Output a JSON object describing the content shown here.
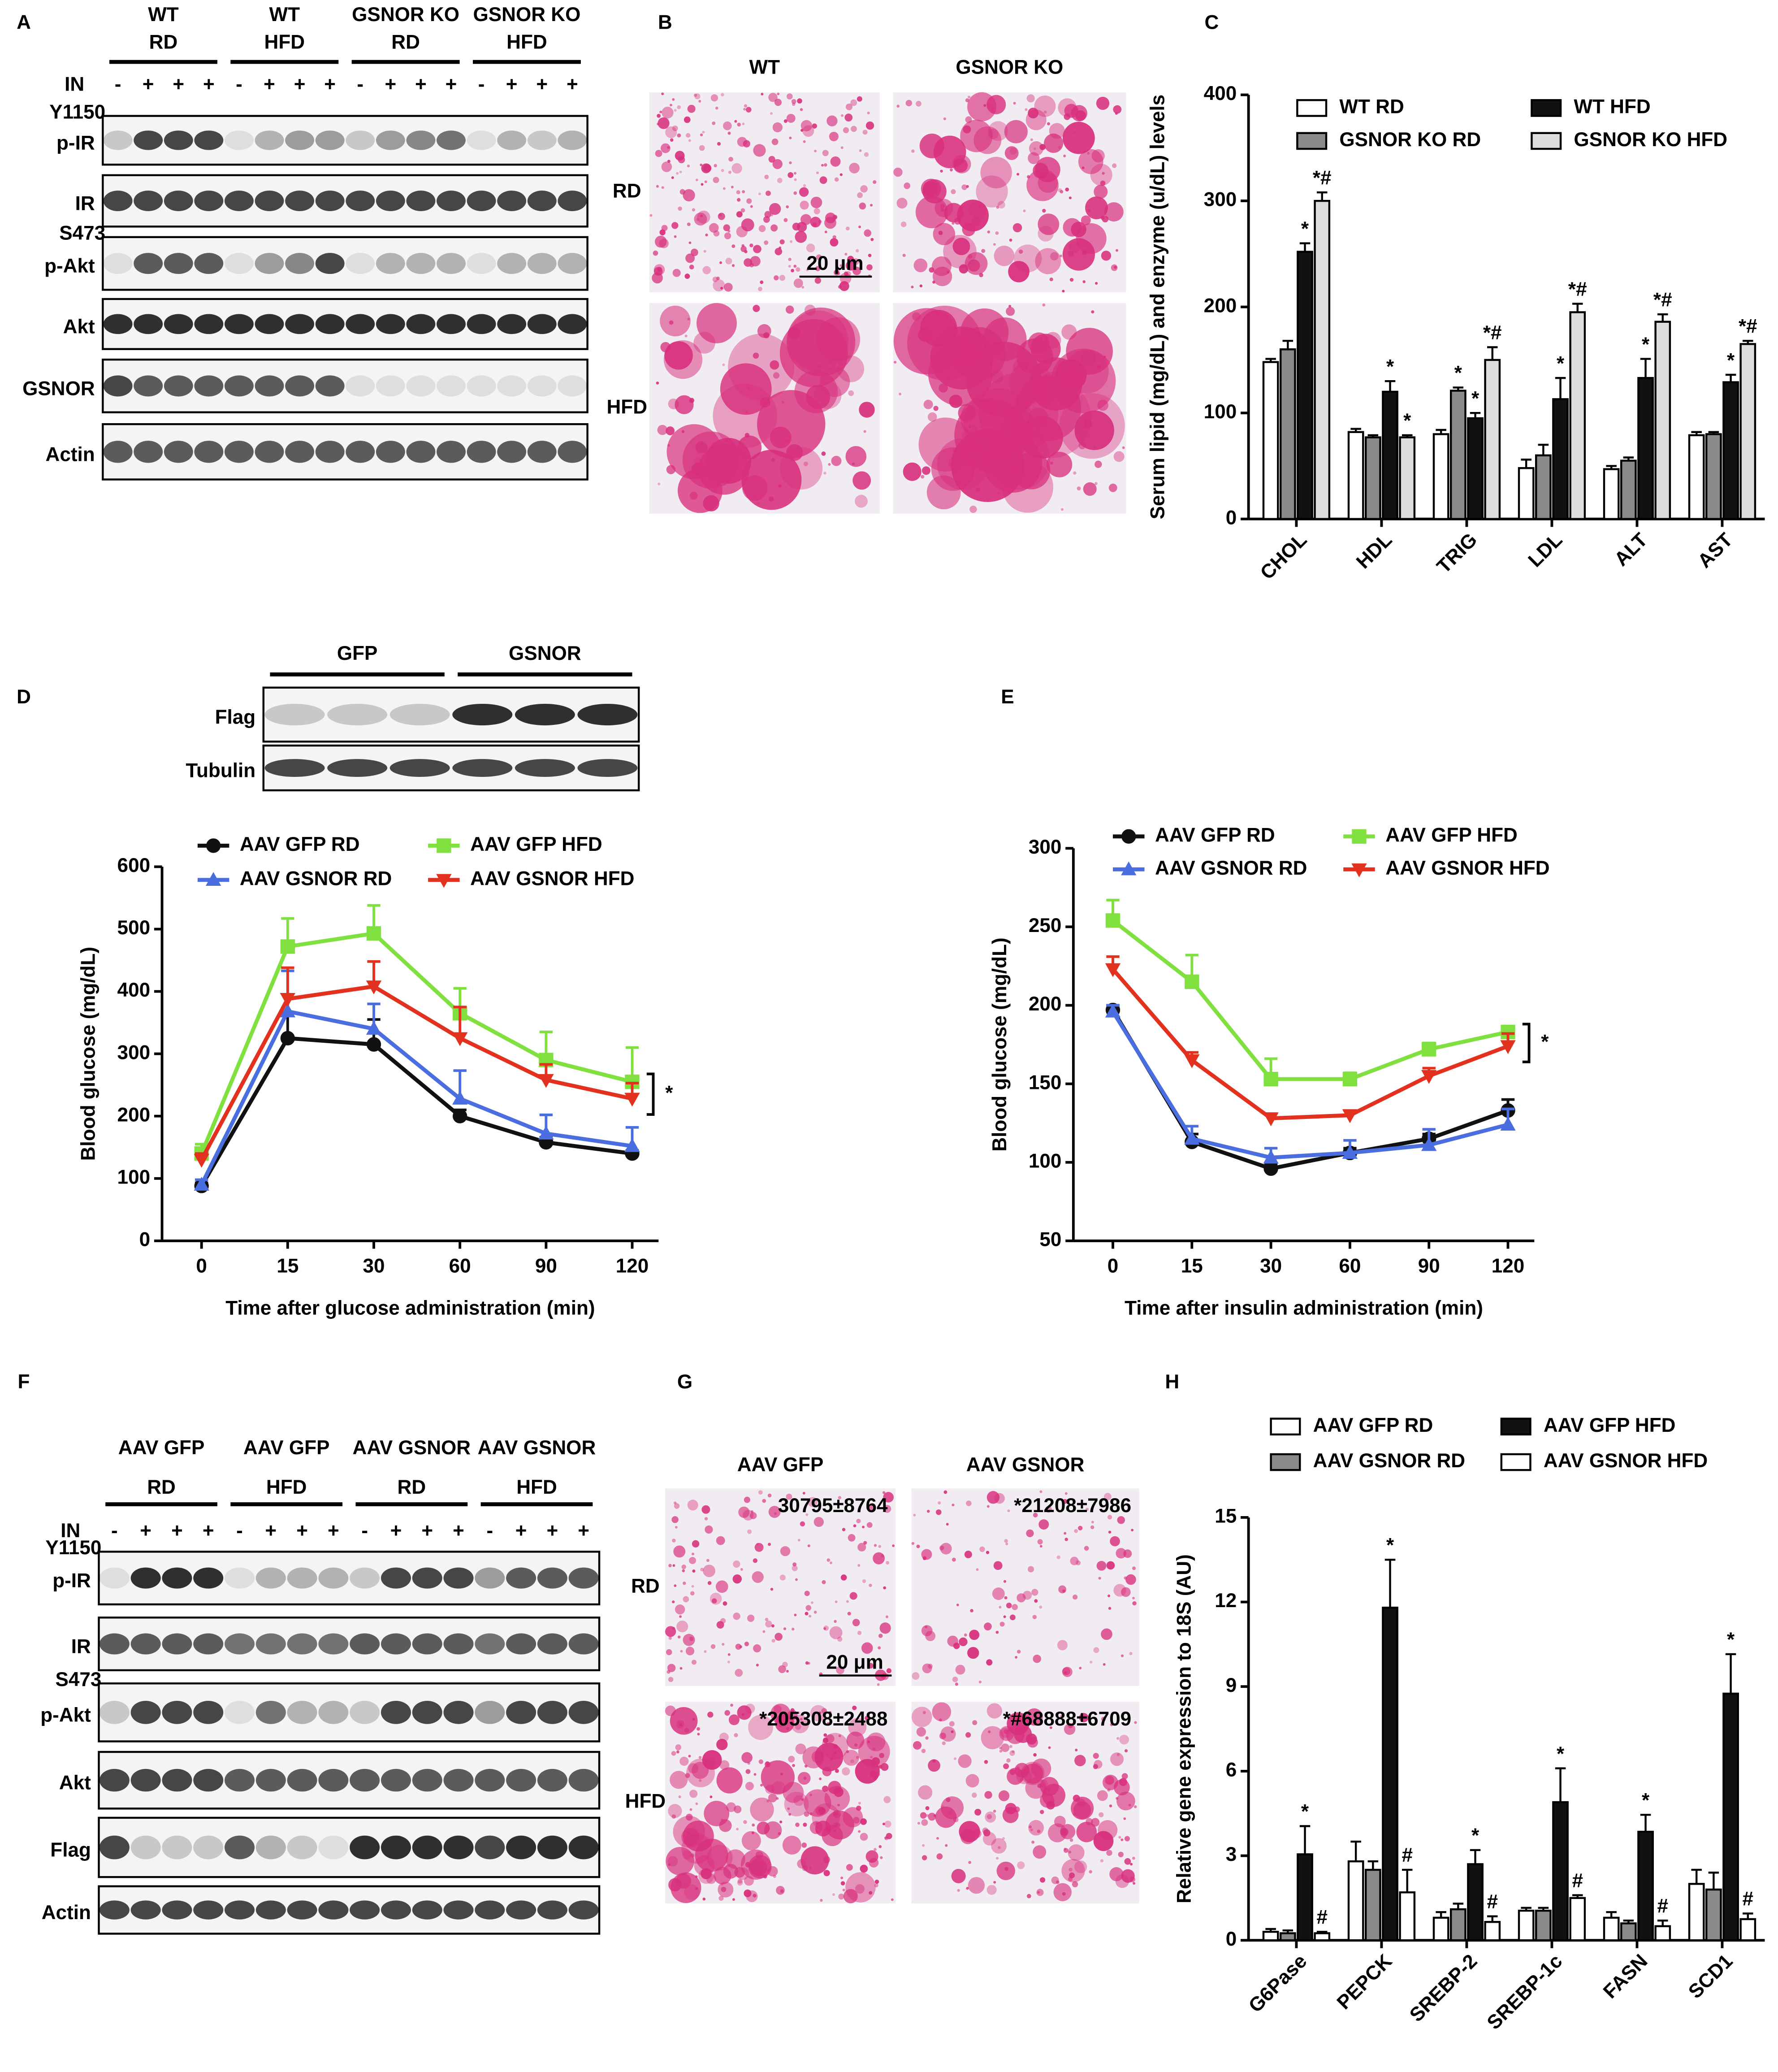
{
  "panel_letters": [
    "A",
    "B",
    "C",
    "D",
    "E",
    "F",
    "G",
    "H"
  ],
  "blot_a": {
    "groups": [
      {
        "name": "WT",
        "diet": "RD"
      },
      {
        "name": "WT",
        "diet": "HFD"
      },
      {
        "name": "GSNOR KO",
        "diet": "RD"
      },
      {
        "name": "GSNOR KO",
        "diet": "HFD"
      }
    ],
    "treatment_label": "IN",
    "treatment_marks": [
      "-",
      "+",
      "+",
      "+"
    ],
    "rows": [
      {
        "label": "p-IR",
        "site": "Y1150"
      },
      {
        "label": "IR"
      },
      {
        "label": "p-Akt",
        "site": "S473"
      },
      {
        "label": "Akt"
      },
      {
        "label": "GSNOR"
      },
      {
        "label": "Actin"
      }
    ]
  },
  "histology_b": {
    "columns": [
      "WT",
      "GSNOR KO"
    ],
    "rows": [
      "RD",
      "HFD"
    ],
    "scale_bar": "20 μm"
  },
  "blot_d": {
    "groups": [
      {
        "name": "GFP"
      },
      {
        "name": "GSNOR"
      }
    ],
    "rows": [
      {
        "label": "Flag"
      },
      {
        "label": "Tubulin"
      }
    ]
  },
  "blot_f": {
    "groups": [
      {
        "name": "AAV GFP",
        "diet": "RD"
      },
      {
        "name": "AAV GFP",
        "diet": "HFD"
      },
      {
        "name": "AAV GSNOR",
        "diet": "RD"
      },
      {
        "name": "AAV GSNOR",
        "diet": "HFD"
      }
    ],
    "treatment_label": "IN",
    "treatment_marks": [
      "-",
      "+",
      "+",
      "+"
    ],
    "rows": [
      {
        "label": "p-IR",
        "site": "Y1150"
      },
      {
        "label": "IR"
      },
      {
        "label": "p-Akt",
        "site": "S473"
      },
      {
        "label": "Akt"
      },
      {
        "label": "Flag"
      },
      {
        "label": "Actin"
      }
    ]
  },
  "histology_g": {
    "columns": [
      "AAV GFP",
      "AAV GSNOR"
    ],
    "rows": [
      "RD",
      "HFD"
    ],
    "counts": [
      [
        "30795±8764",
        "*21208±7986"
      ],
      [
        "*205308±2488",
        "*#68888±6709"
      ]
    ],
    "scale_bar": "20 μm"
  },
  "chart_data": [
    {
      "type": "bar",
      "ylabel": "Serum lipid (mg/dL) and enzyme (u/dL) levels",
      "categories": [
        "CHOL",
        "HDL",
        "TRIG",
        "LDL",
        "ALT",
        "AST"
      ],
      "ylim": [
        0,
        400
      ],
      "yticks": [
        0,
        100,
        200,
        300,
        400
      ],
      "series": [
        {
          "name": "WT RD",
          "color": "#ffffff",
          "values": [
            148,
            82,
            80,
            48,
            47,
            79
          ],
          "errors": [
            3,
            3,
            4,
            8,
            3,
            3
          ],
          "significance": [
            null,
            null,
            null,
            null,
            null,
            null
          ]
        },
        {
          "name": "GSNOR KO RD",
          "color": "#8a8a8a",
          "values": [
            160,
            77,
            121,
            60,
            55,
            80
          ],
          "errors": [
            8,
            2,
            3,
            10,
            3,
            2
          ],
          "significance": [
            null,
            null,
            "*",
            null,
            null,
            null
          ]
        },
        {
          "name": "WT HFD",
          "color": "#111111",
          "values": [
            252,
            120,
            95,
            113,
            133,
            129
          ],
          "errors": [
            8,
            10,
            5,
            20,
            18,
            7
          ],
          "significance": [
            "*",
            "*",
            "*",
            "*",
            "*",
            "*"
          ]
        },
        {
          "name": "GSNOR KO HFD",
          "color": "#dddddd",
          "values": [
            300,
            77,
            150,
            195,
            186,
            165
          ],
          "errors": [
            8,
            2,
            12,
            8,
            7,
            3
          ],
          "significance": [
            "*#",
            "*",
            "*#",
            "*#",
            "*#",
            "*#"
          ]
        }
      ]
    },
    {
      "type": "line",
      "ylabel": "Blood glucose (mg/dL)",
      "xlabel": "Time after glucose administration (min)",
      "categories": [
        "0",
        "15",
        "30",
        "60",
        "90",
        "120"
      ],
      "ylim": [
        0,
        600
      ],
      "yticks": [
        0,
        100,
        200,
        300,
        400,
        500,
        600
      ],
      "annotation": "*",
      "series": [
        {
          "name": "AAV GFP RD",
          "color": "#111111",
          "marker": "circle",
          "values": [
            88,
            325,
            315,
            200,
            158,
            140
          ],
          "errors": [
            5,
            40,
            40,
            10,
            8,
            5
          ]
        },
        {
          "name": "AAV GSNOR RD",
          "color": "#4a6ee0",
          "marker": "triangle-up",
          "values": [
            90,
            368,
            340,
            228,
            172,
            152
          ],
          "errors": [
            8,
            65,
            40,
            45,
            30,
            30
          ]
        },
        {
          "name": "AAV GFP HFD",
          "color": "#80e040",
          "marker": "square",
          "values": [
            140,
            472,
            493,
            365,
            290,
            255
          ],
          "errors": [
            15,
            45,
            45,
            40,
            45,
            55
          ]
        },
        {
          "name": "AAV GSNOR HFD",
          "color": "#e2321f",
          "marker": "triangle-down",
          "values": [
            130,
            388,
            408,
            325,
            258,
            228
          ],
          "errors": [
            10,
            50,
            40,
            50,
            25,
            25
          ]
        }
      ]
    },
    {
      "type": "line",
      "ylabel": "Blood glucose (mg/dL)",
      "xlabel": "Time after insulin administration (min)",
      "categories": [
        "0",
        "15",
        "30",
        "60",
        "90",
        "120"
      ],
      "ylim": [
        50,
        300
      ],
      "yticks": [
        50,
        100,
        150,
        200,
        250,
        300
      ],
      "annotation": "*",
      "series": [
        {
          "name": "AAV GFP RD",
          "color": "#111111",
          "marker": "circle",
          "values": [
            197,
            113,
            96,
            106,
            115,
            133
          ],
          "errors": [
            3,
            5,
            3,
            3,
            3,
            7
          ]
        },
        {
          "name": "AAV GSNOR RD",
          "color": "#4a6ee0",
          "marker": "triangle-up",
          "values": [
            196,
            115,
            103,
            106,
            111,
            124
          ],
          "errors": [
            4,
            8,
            6,
            8,
            10,
            10
          ]
        },
        {
          "name": "AAV GFP HFD",
          "color": "#80e040",
          "marker": "square",
          "values": [
            254,
            215,
            153,
            153,
            172,
            183
          ],
          "errors": [
            13,
            17,
            13,
            4,
            4,
            3
          ]
        },
        {
          "name": "AAV GSNOR HFD",
          "color": "#e2321f",
          "marker": "triangle-down",
          "values": [
            223,
            165,
            128,
            130,
            155,
            174
          ],
          "errors": [
            8,
            5,
            3,
            3,
            5,
            8
          ]
        }
      ]
    },
    {
      "type": "bar",
      "ylabel": "Relative gene expression to 18S (AU)",
      "categories": [
        "G6Pase",
        "PEPCK",
        "SREBP-2",
        "SREBP-1c",
        "FASN",
        "SCD1"
      ],
      "ylim": [
        0,
        15
      ],
      "yticks": [
        0,
        3,
        6,
        9,
        12,
        15
      ],
      "series": [
        {
          "name": "AAV GFP RD",
          "color": "#ffffff",
          "values": [
            0.3,
            2.8,
            0.8,
            1.05,
            0.8,
            2.0
          ],
          "errors": [
            0.1,
            0.7,
            0.2,
            0.1,
            0.2,
            0.5
          ],
          "significance": [
            null,
            null,
            null,
            null,
            null,
            null
          ]
        },
        {
          "name": "AAV GSNOR RD",
          "color": "#8a8a8a",
          "values": [
            0.25,
            2.5,
            1.1,
            1.05,
            0.6,
            1.8
          ],
          "errors": [
            0.1,
            0.3,
            0.2,
            0.1,
            0.1,
            0.6
          ],
          "significance": [
            null,
            null,
            null,
            null,
            null,
            null
          ]
        },
        {
          "name": "AAV GFP HFD",
          "color": "#111111",
          "values": [
            3.05,
            11.8,
            2.7,
            4.9,
            3.85,
            8.75
          ],
          "errors": [
            1.0,
            1.7,
            0.5,
            1.2,
            0.6,
            1.4
          ],
          "significance": [
            "*",
            "*",
            "*",
            "*",
            "*",
            "*"
          ]
        },
        {
          "name": "AAV GSNOR HFD",
          "color": "#ffffff",
          "values": [
            0.25,
            1.7,
            0.65,
            1.5,
            0.5,
            0.75
          ],
          "errors": [
            0.05,
            0.8,
            0.2,
            0.1,
            0.2,
            0.2
          ],
          "significance": [
            "#",
            "#",
            "#",
            "#",
            "#",
            "#"
          ]
        }
      ]
    }
  ]
}
